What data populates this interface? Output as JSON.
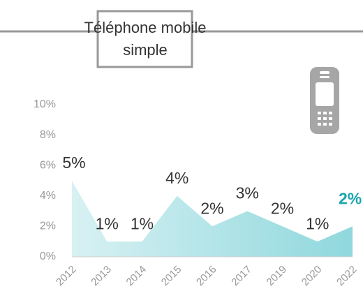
{
  "chart_data": {
    "type": "area",
    "title": [
      "Téléphone mobile",
      "simple"
    ],
    "categories": [
      "2012",
      "2013",
      "2014",
      "2015",
      "2016",
      "2017",
      "2019",
      "2020",
      "2022"
    ],
    "values": [
      5,
      1,
      1,
      4,
      2,
      3,
      2,
      1,
      2
    ],
    "value_labels": [
      "5%",
      "1%",
      "1%",
      "4%",
      "2%",
      "3%",
      "2%",
      "1%",
      "2%"
    ],
    "ylim": [
      0,
      10
    ],
    "yticks": [
      {
        "value": 0,
        "label": "0%"
      },
      {
        "value": 2,
        "label": "2%"
      },
      {
        "value": 4,
        "label": "4%"
      },
      {
        "value": 6,
        "label": "6%"
      },
      {
        "value": 8,
        "label": "8%"
      },
      {
        "value": 10,
        "label": "10%"
      }
    ],
    "color": "#7fd3d9",
    "highlight_color": "#1aa5b0"
  }
}
